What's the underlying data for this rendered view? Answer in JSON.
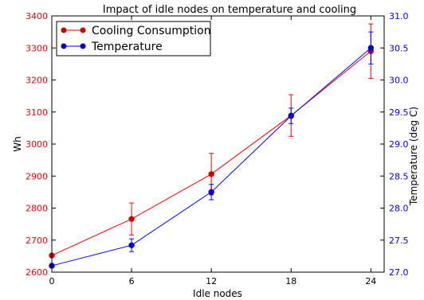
{
  "chart_data": {
    "type": "line",
    "title": "Impact of idle nodes on temperature and cooling",
    "xlabel": "Idle nodes",
    "ylabel_left": "Wh",
    "ylabel_right": "Temperature (deg C)",
    "x": [
      0,
      6,
      12,
      18,
      24
    ],
    "xlim": [
      0,
      25
    ],
    "x_ticks": [
      "0",
      "6",
      "12",
      "18",
      "24"
    ],
    "ylim_left": [
      2600,
      3400
    ],
    "y_ticks_left": [
      "2600",
      "2700",
      "2800",
      "2900",
      "3000",
      "3100",
      "3200",
      "3300",
      "3400"
    ],
    "ylim_right": [
      27.0,
      31.0
    ],
    "y_ticks_right": [
      "27.0",
      "27.5",
      "28.0",
      "28.5",
      "29.0",
      "29.5",
      "30.0",
      "30.5",
      "31.0"
    ],
    "grid": false,
    "legend_position": "top-left",
    "series": [
      {
        "name": "Cooling Consumption",
        "axis": "left",
        "color": "#ff0000",
        "values": [
          2652,
          2766,
          2906,
          3089,
          3290
        ],
        "error": [
          0,
          50,
          65,
          65,
          85
        ]
      },
      {
        "name": "Temperature",
        "axis": "right",
        "color": "#0000ff",
        "values": [
          27.1,
          27.42,
          28.25,
          29.44,
          30.5
        ],
        "error": [
          0,
          0.1,
          0.12,
          0.12,
          0.25
        ]
      }
    ]
  }
}
